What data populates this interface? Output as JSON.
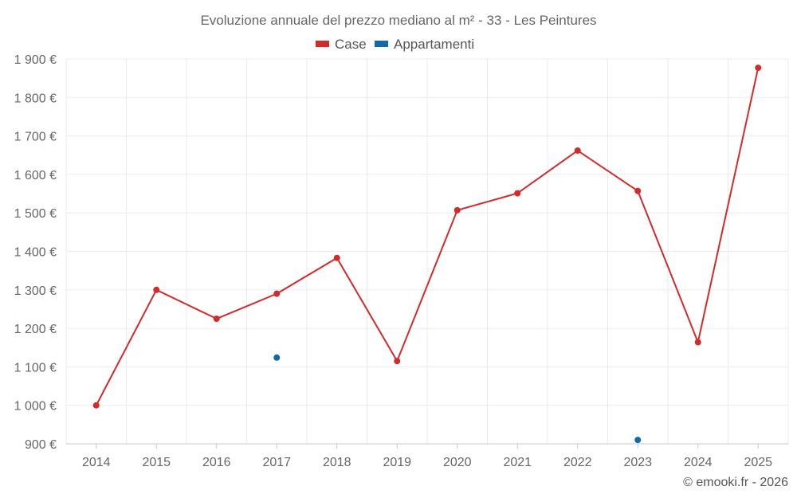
{
  "chart_data": {
    "type": "line",
    "title": "Evoluzione annuale del prezzo mediano al m² - 33 - Les Peintures",
    "categories": [
      "2014",
      "2015",
      "2016",
      "2017",
      "2018",
      "2019",
      "2020",
      "2021",
      "2022",
      "2023",
      "2024",
      "2025"
    ],
    "y_ticks": [
      900,
      1000,
      1100,
      1200,
      1300,
      1400,
      1500,
      1600,
      1700,
      1800,
      1900
    ],
    "y_tick_labels": [
      "900 €",
      "1 000 €",
      "1 100 €",
      "1 200 €",
      "1 300 €",
      "1 400 €",
      "1 500 €",
      "1 600 €",
      "1 700 €",
      "1 800 €",
      "1 900 €"
    ],
    "ylim": [
      900,
      1900
    ],
    "grid": true,
    "legend_position": "top-center",
    "series": [
      {
        "name": "Case",
        "color": "#d42a2a",
        "line": true,
        "values": [
          1000,
          1300,
          1225,
          1290,
          1383,
          1115,
          1507,
          1551,
          1662,
          1557,
          1164,
          1877
        ]
      },
      {
        "name": "Appartamenti",
        "color": "#1268a8",
        "line": false,
        "values": [
          null,
          null,
          null,
          1124,
          null,
          null,
          null,
          null,
          null,
          910,
          null,
          null
        ]
      }
    ],
    "credit": "© emooki.fr - 2026"
  }
}
